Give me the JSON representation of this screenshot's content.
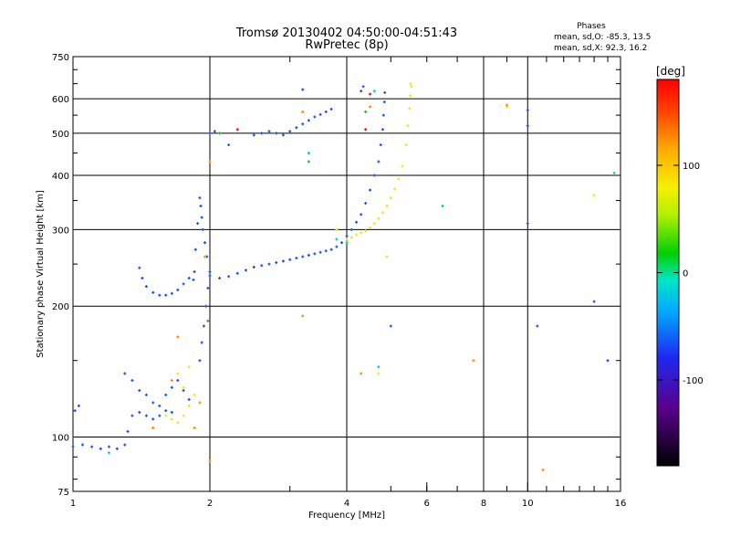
{
  "chart_data": {
    "type": "scatter",
    "title": "Tromsø 20130402 04:50:00-04:51:43",
    "subtitle": "RwPretec (8p)",
    "stats": {
      "heading": "Phases",
      "line_o": "mean, sd,O:  -85.3, 13.5",
      "line_x": "mean, sd,X:  92.3, 16.2"
    },
    "xlabel": "Frequency [MHz]",
    "ylabel": "Stationary phase Virtual Height [km]",
    "xscale": "log",
    "yscale": "log",
    "xlim": [
      1,
      16
    ],
    "ylim": [
      75,
      750
    ],
    "xticks": [
      1,
      2,
      4,
      6,
      8,
      10,
      16
    ],
    "xtick_labels": [
      "1",
      "2",
      "4",
      "6",
      "8",
      "10",
      "16"
    ],
    "yticks": [
      75,
      100,
      200,
      300,
      400,
      500,
      600,
      750
    ],
    "ytick_labels": [
      "75",
      "100",
      "200",
      "300",
      "400",
      "500",
      "600",
      "750"
    ],
    "grid_x": [
      2,
      4,
      8,
      10
    ],
    "grid_y": [
      100,
      200,
      300,
      400,
      500,
      600
    ],
    "colorbar": {
      "label": "[deg]",
      "range": [
        -180,
        180
      ],
      "tick_values": [
        -100,
        0,
        100
      ],
      "tick_labels": [
        "-100",
        "0",
        "100"
      ]
    },
    "series": [
      {
        "color": "#1e50f0",
        "points": [
          [
            1.0,
            95
          ],
          [
            1.05,
            96
          ],
          [
            1.1,
            95
          ],
          [
            1.15,
            94
          ],
          [
            1.2,
            95
          ],
          [
            1.25,
            94
          ],
          [
            1.3,
            96
          ],
          [
            1.01,
            115
          ],
          [
            1.03,
            118
          ],
          [
            1.32,
            103
          ],
          [
            1.35,
            112
          ],
          [
            1.4,
            114
          ],
          [
            1.45,
            112
          ],
          [
            1.5,
            110
          ],
          [
            1.55,
            112
          ],
          [
            1.6,
            115
          ],
          [
            1.65,
            114
          ],
          [
            1.3,
            140
          ],
          [
            1.35,
            135
          ],
          [
            1.4,
            128
          ],
          [
            1.45,
            125
          ],
          [
            1.5,
            120
          ],
          [
            1.55,
            118
          ],
          [
            1.6,
            125
          ],
          [
            1.65,
            130
          ],
          [
            1.7,
            135
          ],
          [
            1.75,
            128
          ],
          [
            1.8,
            122
          ],
          [
            1.9,
            150
          ],
          [
            1.92,
            165
          ],
          [
            1.94,
            180
          ],
          [
            1.96,
            200
          ],
          [
            1.98,
            220
          ],
          [
            2.0,
            240
          ],
          [
            1.97,
            260
          ],
          [
            1.95,
            280
          ],
          [
            1.93,
            300
          ],
          [
            1.92,
            320
          ],
          [
            1.91,
            340
          ],
          [
            1.9,
            355
          ],
          [
            1.88,
            310
          ],
          [
            1.86,
            270
          ],
          [
            1.84,
            230
          ],
          [
            1.4,
            245
          ],
          [
            1.42,
            232
          ],
          [
            1.45,
            222
          ],
          [
            1.5,
            215
          ],
          [
            1.55,
            212
          ],
          [
            1.6,
            212
          ],
          [
            1.65,
            214
          ],
          [
            1.7,
            218
          ],
          [
            1.75,
            225
          ],
          [
            1.8,
            232
          ],
          [
            1.85,
            240
          ],
          [
            2.0,
            235
          ],
          [
            2.1,
            232
          ],
          [
            2.2,
            234
          ],
          [
            2.3,
            238
          ],
          [
            2.4,
            242
          ],
          [
            2.5,
            246
          ],
          [
            2.6,
            248
          ],
          [
            2.7,
            250
          ],
          [
            2.8,
            252
          ],
          [
            2.9,
            254
          ],
          [
            3.0,
            256
          ],
          [
            3.1,
            258
          ],
          [
            3.2,
            260
          ],
          [
            3.3,
            262
          ],
          [
            3.4,
            264
          ],
          [
            3.5,
            266
          ],
          [
            3.6,
            268
          ],
          [
            3.7,
            270
          ],
          [
            3.8,
            274
          ],
          [
            3.9,
            280
          ],
          [
            4.0,
            290
          ],
          [
            4.1,
            300
          ],
          [
            4.2,
            312
          ],
          [
            4.3,
            325
          ],
          [
            4.4,
            345
          ],
          [
            4.5,
            370
          ],
          [
            4.6,
            400
          ],
          [
            4.7,
            430
          ],
          [
            4.75,
            470
          ],
          [
            4.8,
            510
          ],
          [
            4.82,
            550
          ],
          [
            4.84,
            590
          ],
          [
            4.85,
            620
          ],
          [
            2.5,
            495
          ],
          [
            2.6,
            500
          ],
          [
            2.7,
            505
          ],
          [
            2.8,
            500
          ],
          [
            2.9,
            495
          ],
          [
            3.0,
            505
          ],
          [
            3.1,
            515
          ],
          [
            3.2,
            525
          ],
          [
            3.3,
            535
          ],
          [
            3.4,
            545
          ],
          [
            3.5,
            552
          ],
          [
            3.6,
            560
          ],
          [
            3.7,
            568
          ],
          [
            2.0,
            500
          ],
          [
            2.05,
            505
          ],
          [
            2.2,
            470
          ],
          [
            4.3,
            625
          ],
          [
            4.35,
            640
          ],
          [
            5.0,
            180
          ],
          [
            3.2,
            630
          ],
          [
            10.0,
            565
          ],
          [
            10.0,
            520
          ],
          [
            10.0,
            310
          ],
          [
            10.5,
            180
          ],
          [
            14.0,
            205
          ],
          [
            15.0,
            150
          ]
        ]
      },
      {
        "color": "#f0e614",
        "points": [
          [
            4.0,
            285
          ],
          [
            4.1,
            288
          ],
          [
            4.2,
            292
          ],
          [
            4.3,
            295
          ],
          [
            4.4,
            298
          ],
          [
            4.5,
            303
          ],
          [
            4.6,
            310
          ],
          [
            4.7,
            318
          ],
          [
            4.8,
            328
          ],
          [
            4.9,
            340
          ],
          [
            5.0,
            355
          ],
          [
            5.1,
            372
          ],
          [
            5.2,
            392
          ],
          [
            5.3,
            420
          ],
          [
            5.4,
            470
          ],
          [
            5.45,
            520
          ],
          [
            5.5,
            570
          ],
          [
            5.52,
            610
          ],
          [
            5.55,
            640
          ],
          [
            5.53,
            650
          ],
          [
            1.6,
            112
          ],
          [
            1.65,
            110
          ],
          [
            1.7,
            108
          ],
          [
            1.75,
            112
          ],
          [
            1.8,
            118
          ],
          [
            1.85,
            125
          ],
          [
            1.75,
            130
          ],
          [
            1.7,
            140
          ],
          [
            1.8,
            145
          ],
          [
            9.0,
            575
          ],
          [
            14.0,
            360
          ],
          [
            3.8,
            300
          ],
          [
            4.7,
            140
          ],
          [
            4.9,
            260
          ]
        ]
      },
      {
        "color": "#ff8c00",
        "points": [
          [
            1.5,
            105
          ],
          [
            1.65,
            135
          ],
          [
            1.7,
            170
          ],
          [
            1.9,
            120
          ],
          [
            2.0,
            88
          ],
          [
            1.85,
            105
          ],
          [
            1.95,
            260
          ],
          [
            3.2,
            560
          ],
          [
            3.2,
            190
          ],
          [
            4.3,
            140
          ],
          [
            4.5,
            575
          ],
          [
            7.6,
            150
          ],
          [
            9.0,
            580
          ],
          [
            10.8,
            84
          ],
          [
            2.0,
            430
          ]
        ]
      },
      {
        "color": "#00c8c8",
        "points": [
          [
            3.8,
            285
          ],
          [
            4.0,
            280
          ],
          [
            4.6,
            625
          ],
          [
            6.5,
            340
          ],
          [
            15.5,
            405
          ],
          [
            3.3,
            450
          ],
          [
            1.2,
            92
          ],
          [
            4.7,
            145
          ]
        ]
      },
      {
        "color": "#28b428",
        "points": [
          [
            3.3,
            430
          ],
          [
            2.1,
            500
          ],
          [
            4.4,
            560
          ],
          [
            1.98,
            185
          ]
        ]
      },
      {
        "color": "#dc1414",
        "points": [
          [
            4.4,
            510
          ],
          [
            2.3,
            510
          ],
          [
            4.5,
            615
          ]
        ]
      }
    ]
  }
}
